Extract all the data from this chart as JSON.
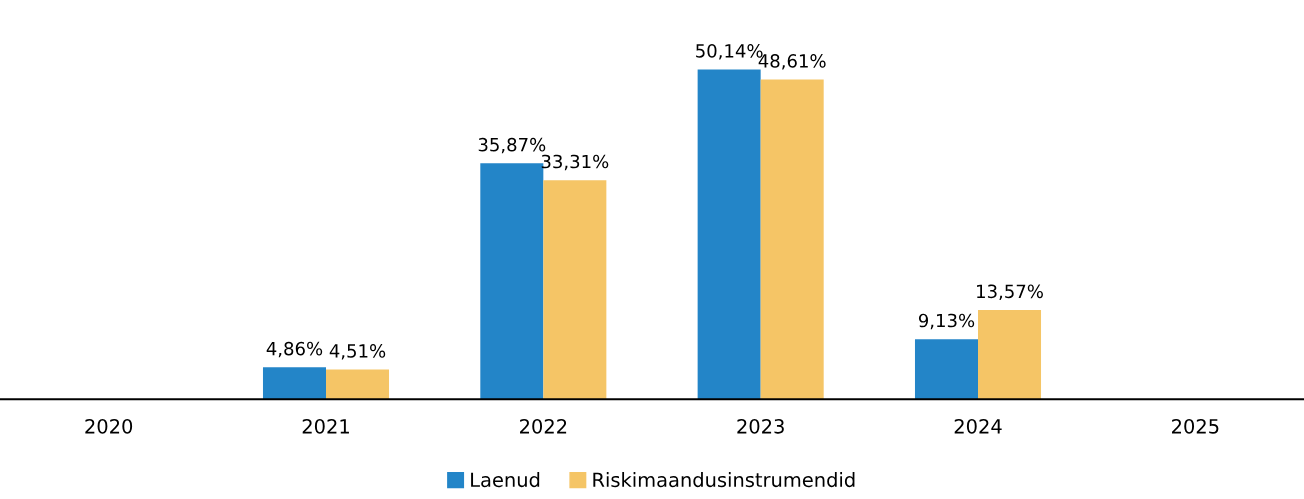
{
  "chart_data": {
    "type": "bar",
    "categories": [
      "2020",
      "2021",
      "2022",
      "2023",
      "2024",
      "2025"
    ],
    "series": [
      {
        "name": "Laenud",
        "color": "#2385c8",
        "values": [
          null,
          4.86,
          35.87,
          50.14,
          9.13,
          null
        ],
        "value_labels": [
          null,
          "4,86%",
          "35,87%",
          "50,14%",
          "9,13%",
          null
        ]
      },
      {
        "name": "Riskimaandusinstrumendid",
        "color": "#f5c566",
        "values": [
          null,
          4.51,
          33.31,
          48.61,
          13.57,
          null
        ],
        "value_labels": [
          null,
          "4,51%",
          "33,31%",
          "48,61%",
          "13,57%",
          null
        ]
      }
    ],
    "legend": "bottom",
    "grid": false,
    "tick_labels": "x"
  }
}
